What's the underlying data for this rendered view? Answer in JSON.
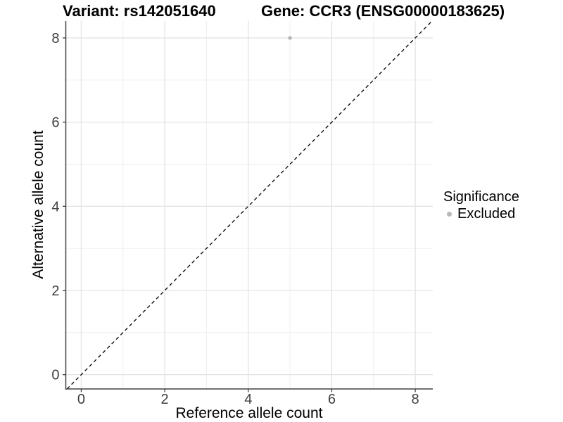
{
  "chart_data": {
    "type": "scatter",
    "title_left": "Variant: rs142051640",
    "title_right": "Gene: CCR3 (ENSG00000183625)",
    "xlabel": "Reference allele count",
    "ylabel": "Alternative allele count",
    "xlim": [
      -0.37,
      8.42
    ],
    "ylim": [
      -0.34,
      8.4
    ],
    "xticks": [
      0,
      2,
      4,
      6,
      8
    ],
    "yticks": [
      0,
      2,
      4,
      6,
      8
    ],
    "x_minor_ticks": [
      1,
      3,
      5,
      7
    ],
    "y_minor_ticks": [
      1,
      3,
      5,
      7
    ],
    "grid": true,
    "points": [
      {
        "x": 5,
        "y": 8,
        "significance": "Excluded"
      }
    ],
    "reference_line": {
      "slope": 1,
      "intercept": 0,
      "style": "dashed"
    },
    "legend": {
      "title": "Significance",
      "position": "right",
      "items": [
        {
          "label": "Excluded",
          "marker": "circle",
          "color": "#b8b8b8"
        }
      ]
    },
    "colors": {
      "point": "#b8b8b8",
      "axis_line": "#404040",
      "tick_label": "#404040",
      "grid_major": "#e3e3e3",
      "grid_minor": "#efefef",
      "reference_line": "#000000",
      "title_text": "#000000"
    }
  }
}
